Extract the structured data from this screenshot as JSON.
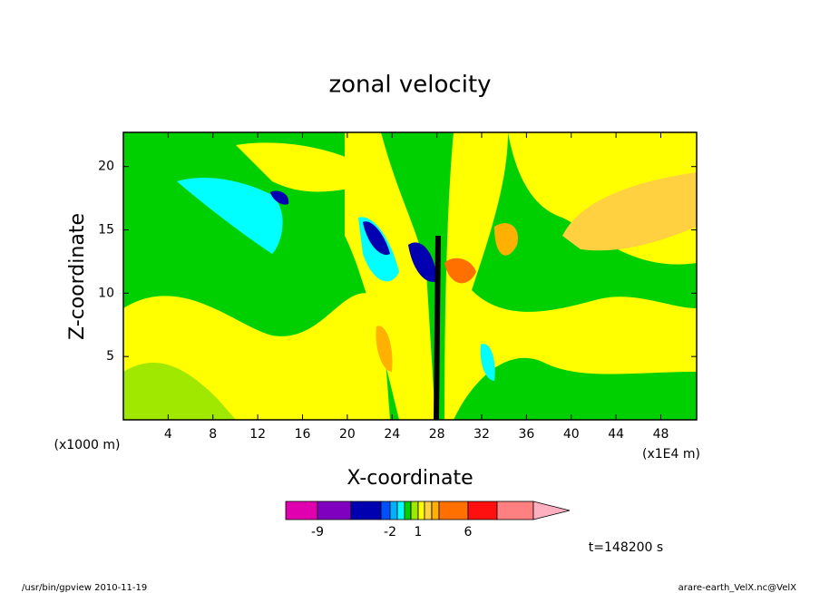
{
  "chart_data": {
    "type": "contour",
    "title": "zonal velocity",
    "x_label": "X-coordinate",
    "y_label": "Z-coordinate",
    "x_unit": "(x1E4 m)",
    "y_unit": "(x1000 m)",
    "time_label": "t=148200 s",
    "footer_left": "/usr/bin/gpview   2010-11-19",
    "footer_right": "arare-earth_VelX.nc@VelX",
    "xlim": [
      0,
      51.2
    ],
    "xticks": [
      4,
      8,
      12,
      16,
      20,
      24,
      28,
      32,
      36,
      40,
      44,
      48
    ],
    "ylim": [
      0,
      22.7
    ],
    "yticks": [
      5,
      10,
      15,
      20
    ],
    "colorbar": {
      "levels": [
        -9,
        -6,
        -3,
        -2,
        -1,
        -0.5,
        0.5,
        1,
        2,
        3,
        4,
        6,
        9
      ],
      "colors": [
        "#e000b0",
        "#8000c0",
        "#0000b0",
        "#0050ff",
        "#00b0ff",
        "#00ffff",
        "#00d000",
        "#a0e800",
        "#ffff00",
        "#ffd040",
        "#ffb000",
        "#ff7000",
        "#ff1010",
        "#ff8080",
        "#ffb0c0"
      ],
      "ticks": [
        -9,
        -2,
        1,
        6
      ]
    }
  }
}
